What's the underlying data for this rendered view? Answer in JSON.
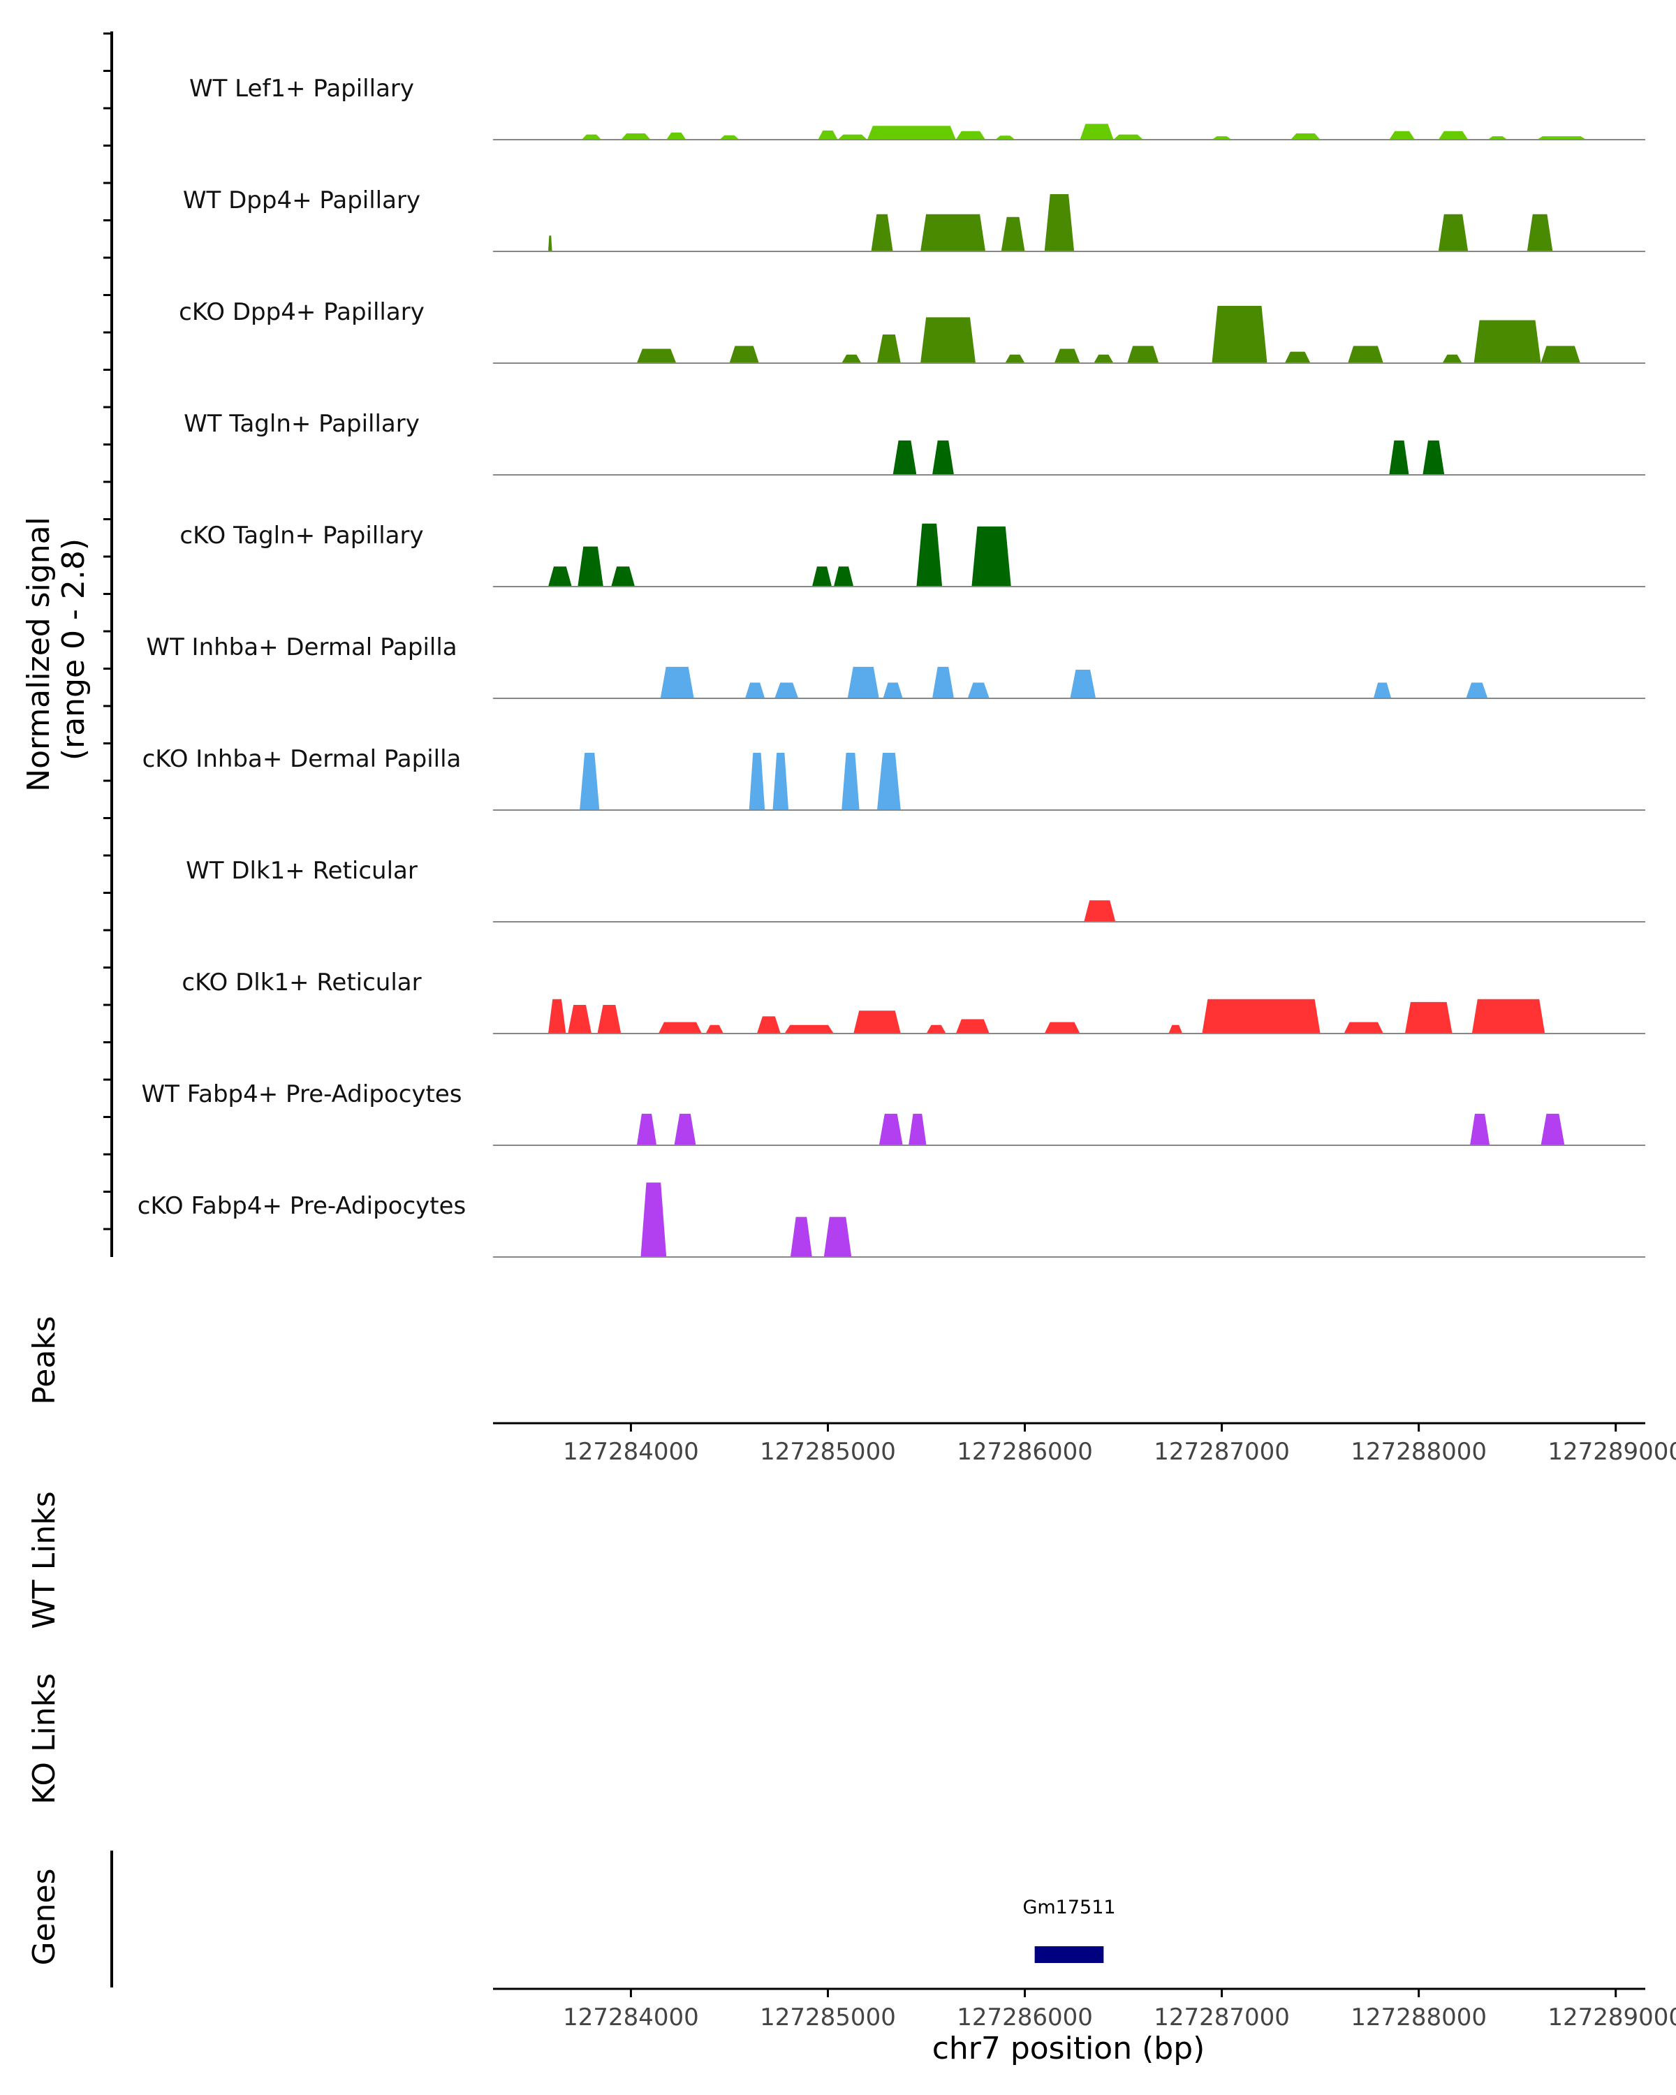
{
  "chart_data": {
    "type": "area",
    "chromosome": "chr7",
    "xlabel": "chr7 position (bp)",
    "xlim": [
      127283300,
      127289150
    ],
    "xticks": [
      127284000,
      127285000,
      127286000,
      127287000,
      127288000,
      127289000
    ],
    "xtick_labels": [
      "127284000",
      "127285000",
      "127286000",
      "127287000",
      "127288000",
      "127289000"
    ],
    "ylabel_line1": "Normalized signal",
    "ylabel_line2": "(range 0 - 2.8)",
    "yrange": [
      0,
      2.8
    ],
    "tracks": [
      {
        "name": "WT Lef1+ Papillary",
        "color": "#66cc00",
        "regions": [
          [
            127283750,
            127283850,
            0.18
          ],
          [
            127283950,
            127284100,
            0.22
          ],
          [
            127284180,
            127284280,
            0.25
          ],
          [
            127284450,
            127284550,
            0.15
          ],
          [
            127284950,
            127285050,
            0.32
          ],
          [
            127285050,
            127285200,
            0.18
          ],
          [
            127285200,
            127285650,
            0.48
          ],
          [
            127285650,
            127285800,
            0.3
          ],
          [
            127285850,
            127285950,
            0.14
          ],
          [
            127286280,
            127286450,
            0.55
          ],
          [
            127286450,
            127286600,
            0.18
          ],
          [
            127286950,
            127287050,
            0.12
          ],
          [
            127287350,
            127287500,
            0.22
          ],
          [
            127287850,
            127287980,
            0.3
          ],
          [
            127288100,
            127288250,
            0.3
          ],
          [
            127288350,
            127288450,
            0.12
          ],
          [
            127288600,
            127288850,
            0.12
          ]
        ]
      },
      {
        "name": "WT Dpp4+ Papillary",
        "color": "#4a8a00",
        "regions": [
          [
            127283580,
            127283600,
            0.55
          ],
          [
            127285220,
            127285330,
            1.3
          ],
          [
            127285470,
            127285800,
            1.3
          ],
          [
            127285880,
            127286000,
            1.2
          ],
          [
            127286100,
            127286250,
            2.0
          ],
          [
            127288100,
            127288250,
            1.3
          ],
          [
            127288550,
            127288680,
            1.3
          ]
        ]
      },
      {
        "name": "cKO Dpp4+ Papillary",
        "color": "#4a8a00",
        "regions": [
          [
            127284030,
            127284230,
            0.5
          ],
          [
            127284500,
            127284650,
            0.6
          ],
          [
            127285070,
            127285170,
            0.3
          ],
          [
            127285250,
            127285370,
            1.0
          ],
          [
            127285470,
            127285750,
            1.6
          ],
          [
            127285900,
            127286000,
            0.3
          ],
          [
            127286150,
            127286280,
            0.5
          ],
          [
            127286350,
            127286450,
            0.3
          ],
          [
            127286520,
            127286680,
            0.6
          ],
          [
            127286950,
            127287230,
            2.0
          ],
          [
            127287320,
            127287450,
            0.4
          ],
          [
            127287640,
            127287820,
            0.6
          ],
          [
            127288120,
            127288220,
            0.3
          ],
          [
            127288280,
            127288620,
            1.5
          ],
          [
            127288620,
            127288820,
            0.6
          ]
        ]
      },
      {
        "name": "WT Tagln+ Papillary",
        "color": "#006600",
        "regions": [
          [
            127285330,
            127285450,
            1.2
          ],
          [
            127285530,
            127285640,
            1.2
          ],
          [
            127287850,
            127287950,
            1.2
          ],
          [
            127288020,
            127288130,
            1.2
          ]
        ]
      },
      {
        "name": "cKO Tagln+ Papillary",
        "color": "#006600",
        "regions": [
          [
            127283580,
            127283700,
            0.7
          ],
          [
            127283730,
            127283860,
            1.4
          ],
          [
            127283900,
            127284020,
            0.7
          ],
          [
            127284920,
            127285020,
            0.7
          ],
          [
            127285030,
            127285130,
            0.7
          ],
          [
            127285450,
            127285580,
            2.2
          ],
          [
            127285730,
            127285930,
            2.1
          ]
        ]
      },
      {
        "name": "WT Inhba+ Dermal Papilla",
        "color": "#5aabeb",
        "regions": [
          [
            127284150,
            127284320,
            1.1
          ],
          [
            127284580,
            127284680,
            0.55
          ],
          [
            127284730,
            127284850,
            0.55
          ],
          [
            127285100,
            127285260,
            1.1
          ],
          [
            127285280,
            127285380,
            0.55
          ],
          [
            127285530,
            127285640,
            1.1
          ],
          [
            127285710,
            127285820,
            0.55
          ],
          [
            127286230,
            127286360,
            1.0
          ],
          [
            127287770,
            127287860,
            0.55
          ],
          [
            127288240,
            127288350,
            0.55
          ]
        ]
      },
      {
        "name": "cKO Inhba+ Dermal Papilla",
        "color": "#5aabeb",
        "regions": [
          [
            127283740,
            127283840,
            2.0
          ],
          [
            127284600,
            127284680,
            2.0
          ],
          [
            127284720,
            127284800,
            2.0
          ],
          [
            127285070,
            127285160,
            2.0
          ],
          [
            127285250,
            127285370,
            2.0
          ]
        ]
      },
      {
        "name": "WT Dlk1+ Reticular",
        "color": "#ff3333",
        "regions": [
          [
            127286300,
            127286460,
            0.75
          ]
        ]
      },
      {
        "name": "cKO Dlk1+ Reticular",
        "color": "#ff3333",
        "regions": [
          [
            127283580,
            127283670,
            1.2
          ],
          [
            127283680,
            127283800,
            1.0
          ],
          [
            127283830,
            127283950,
            1.0
          ],
          [
            127284140,
            127284360,
            0.4
          ],
          [
            127284380,
            127284470,
            0.3
          ],
          [
            127284640,
            127284760,
            0.6
          ],
          [
            127284780,
            127285030,
            0.3
          ],
          [
            127285130,
            127285370,
            0.8
          ],
          [
            127285500,
            127285600,
            0.3
          ],
          [
            127285650,
            127285820,
            0.5
          ],
          [
            127286100,
            127286280,
            0.4
          ],
          [
            127286730,
            127286800,
            0.3
          ],
          [
            127286900,
            127287500,
            1.2
          ],
          [
            127287620,
            127287820,
            0.4
          ],
          [
            127287930,
            127288170,
            1.1
          ],
          [
            127288270,
            127288640,
            1.2
          ]
        ]
      },
      {
        "name": "WT Fabp4+ Pre-Adipocytes",
        "color": "#b23ff0",
        "regions": [
          [
            127284030,
            127284130,
            1.1
          ],
          [
            127284220,
            127284330,
            1.1
          ],
          [
            127285260,
            127285380,
            1.1
          ],
          [
            127285410,
            127285500,
            1.1
          ],
          [
            127288260,
            127288360,
            1.1
          ],
          [
            127288620,
            127288740,
            1.1
          ]
        ]
      },
      {
        "name": "cKO Fabp4+ Pre-Adipocytes",
        "color": "#b23ff0",
        "regions": [
          [
            127284050,
            127284180,
            2.6
          ],
          [
            127284810,
            127284920,
            1.4
          ],
          [
            127284980,
            127285120,
            1.4
          ]
        ]
      }
    ],
    "track_labels": {
      "peaks": "Peaks",
      "wt_links": "WT Links",
      "ko_links": "KO Links",
      "genes": "Genes"
    },
    "genes": [
      {
        "name": "Gm17511",
        "start": 127286050,
        "end": 127286400,
        "color": "#000080"
      }
    ]
  }
}
